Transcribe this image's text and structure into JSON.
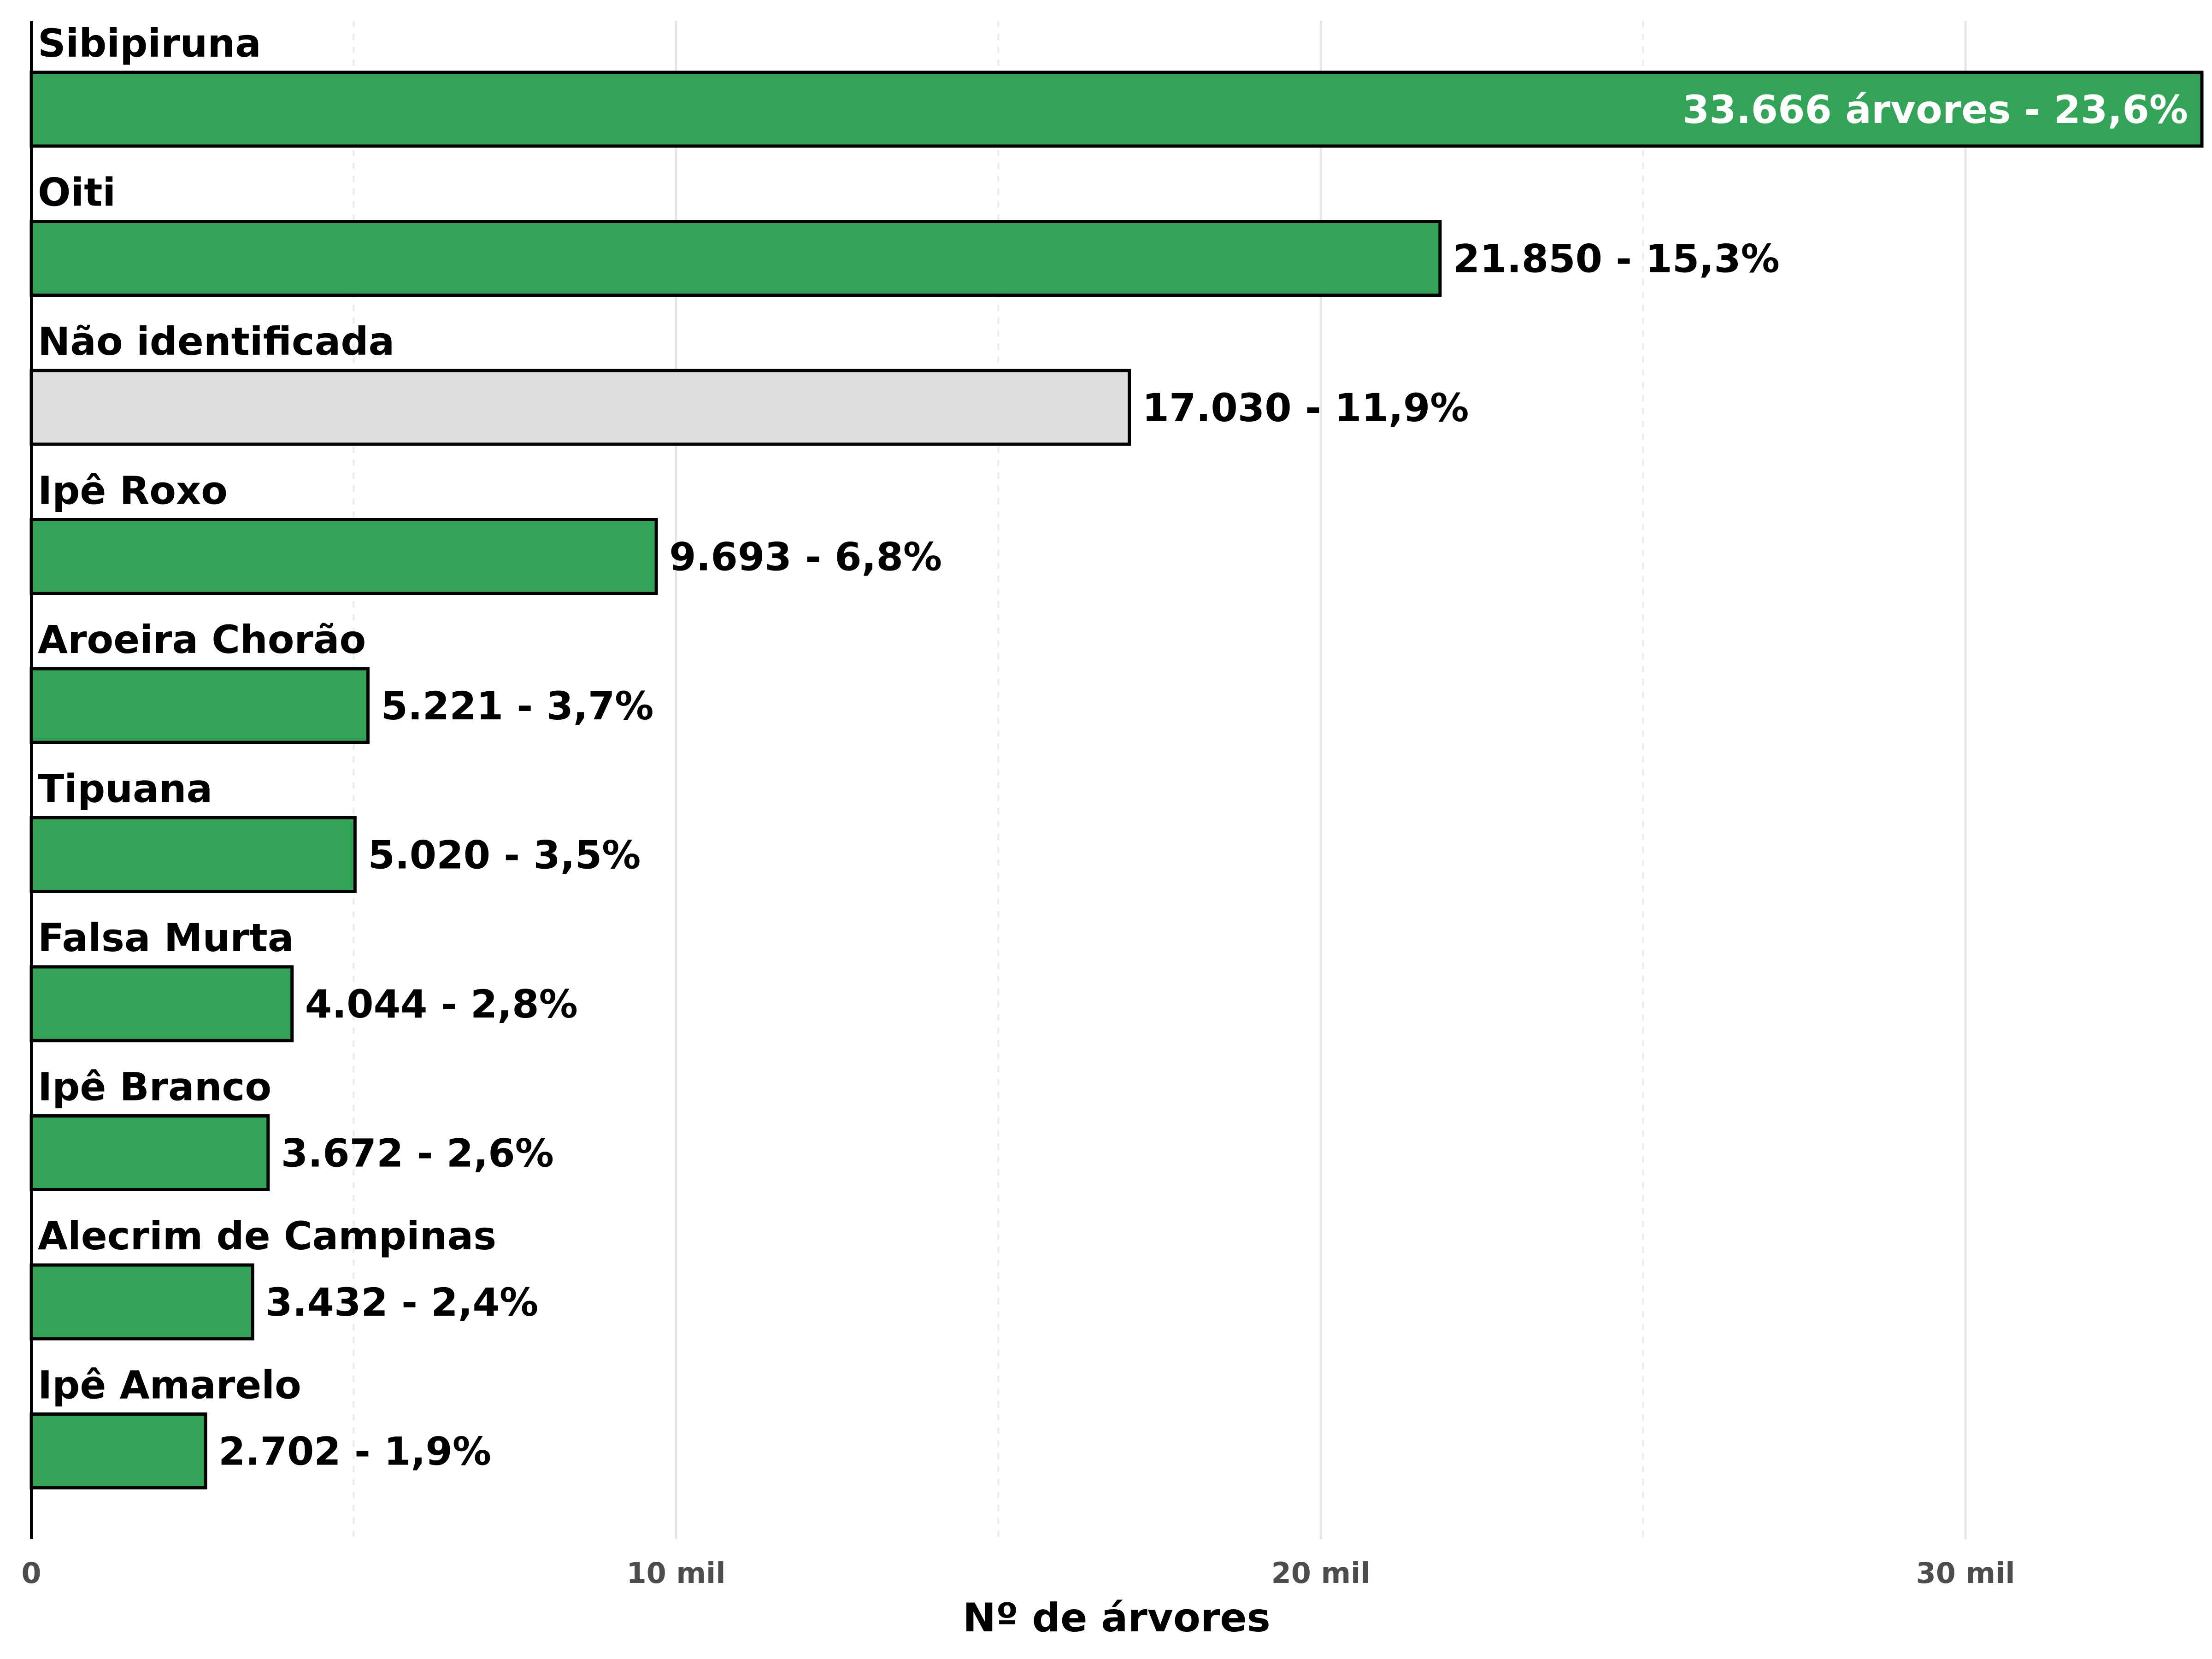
{
  "chart_data": {
    "type": "bar",
    "orientation": "horizontal",
    "xlabel": "Nº de árvores",
    "xlim": [
      0,
      33666
    ],
    "x_ticks": [
      {
        "value": 0,
        "label": "0"
      },
      {
        "value": 10000,
        "label": "10 mil"
      },
      {
        "value": 20000,
        "label": "20 mil"
      },
      {
        "value": 30000,
        "label": "30 mil"
      }
    ],
    "minor_grid": [
      5000,
      15000,
      25000
    ],
    "grid": true,
    "colors": {
      "default": "#33a457",
      "unidentified": "#dedede",
      "outline": "#000000"
    },
    "categories": [
      "Sibipiruna",
      "Oiti",
      "Não identificada",
      "Ipê Roxo",
      "Aroeira Chorão",
      "Tipuana",
      "Falsa Murta",
      "Ipê Branco",
      "Alecrim de Campinas",
      "Ipê Amarelo"
    ],
    "values": [
      33666,
      21850,
      17030,
      9693,
      5221,
      5020,
      4044,
      3672,
      3432,
      2702
    ],
    "percentages": [
      23.6,
      15.3,
      11.9,
      6.8,
      3.7,
      3.5,
      2.8,
      2.6,
      2.4,
      1.9
    ],
    "data_labels": [
      "33.666 árvores - 23,6%",
      "21.850 - 15,3%",
      "17.030 - 11,9%",
      "9.693 - 6,8%",
      "5.221 - 3,7%",
      "5.020 - 3,5%",
      "4.044 - 2,8%",
      "3.672 - 2,6%",
      "3.432 - 2,4%",
      "2.702 - 1,9%"
    ],
    "bar_colors": [
      "#33a457",
      "#33a457",
      "#dedede",
      "#33a457",
      "#33a457",
      "#33a457",
      "#33a457",
      "#33a457",
      "#33a457",
      "#33a457"
    ]
  }
}
